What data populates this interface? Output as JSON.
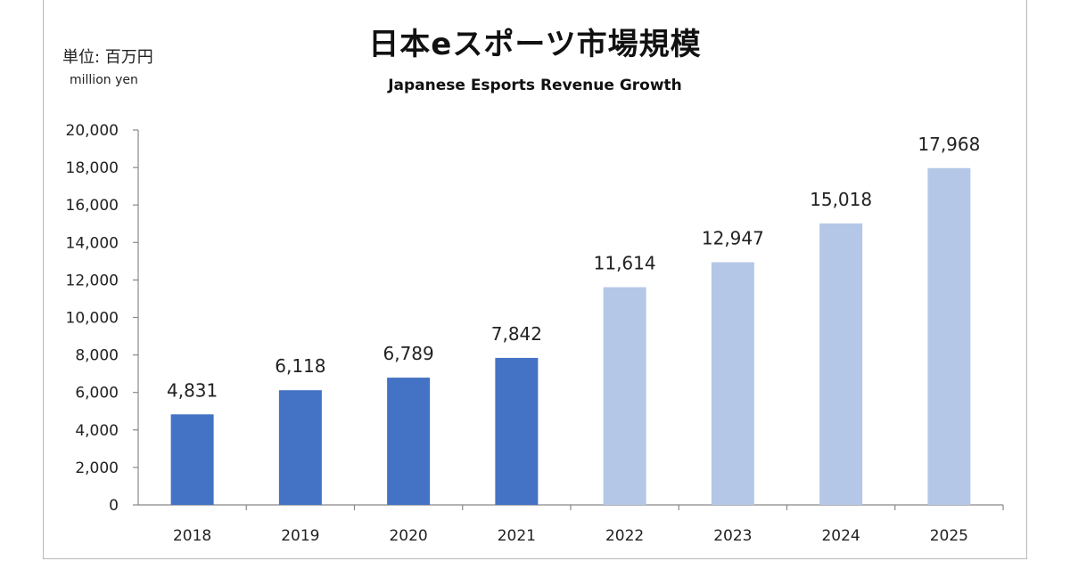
{
  "unit": {
    "jp": "単位: 百万円",
    "en": "million yen"
  },
  "chart_data": {
    "type": "bar",
    "title": "日本eスポーツ市場規模",
    "subtitle": "Japanese  Esports Revenue  Growth",
    "categories": [
      "2018",
      "2019",
      "2020",
      "2021",
      "2022",
      "2023",
      "2024",
      "2025"
    ],
    "values": [
      4831,
      6118,
      6789,
      7842,
      11614,
      12947,
      15018,
      17968
    ],
    "value_labels": [
      "4,831",
      "6,118",
      "6,789",
      "7,842",
      "11,614",
      "12,947",
      "15,018",
      "17,968"
    ],
    "bar_colors": [
      "#4472c4",
      "#4472c4",
      "#4472c4",
      "#4472c4",
      "#b4c7e7",
      "#b4c7e7",
      "#b4c7e7",
      "#b4c7e7"
    ],
    "ylim": [
      0,
      20000
    ],
    "yticks": [
      "0",
      "2,000",
      "4,000",
      "6,000",
      "8,000",
      "10,000",
      "12,000",
      "14,000",
      "16,000",
      "18,000",
      "20,000"
    ],
    "grid": false,
    "legend": "none"
  }
}
